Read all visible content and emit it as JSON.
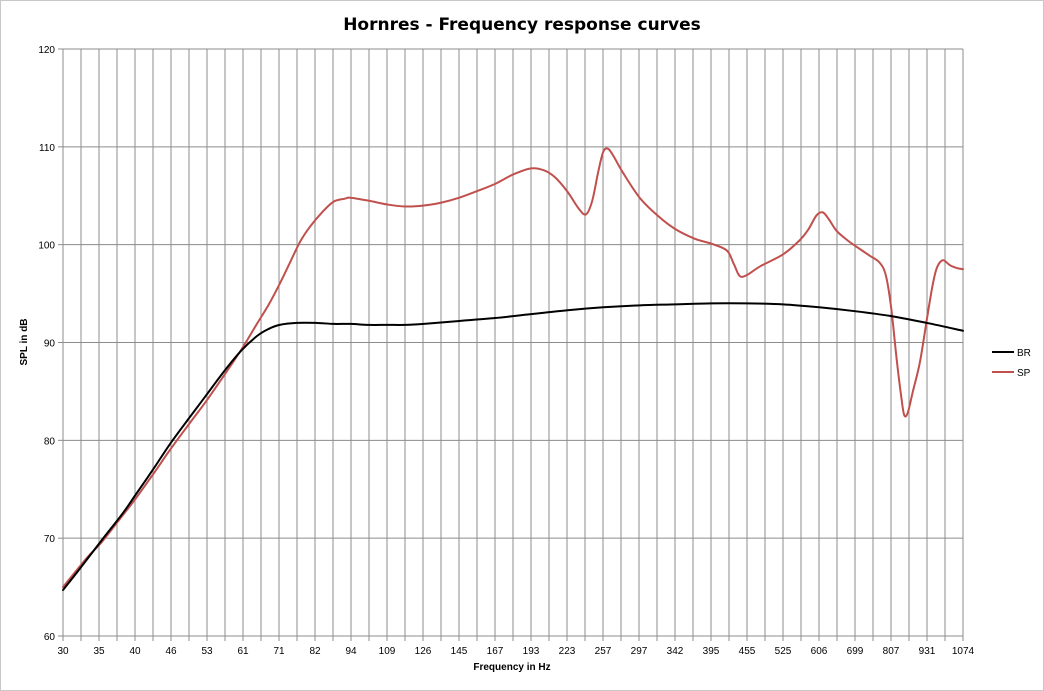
{
  "chart_data": {
    "type": "line",
    "title": "Hornres - Frequency response curves",
    "xlabel": "Frequency in Hz",
    "ylabel": "SPL in dB",
    "x_scale": "log",
    "xlim": [
      30,
      1074
    ],
    "ylim": [
      60,
      120
    ],
    "y_ticks": [
      60,
      70,
      80,
      90,
      100,
      110,
      120
    ],
    "x_tick_labels": [
      "30",
      "35",
      "40",
      "46",
      "53",
      "61",
      "71",
      "82",
      "94",
      "109",
      "126",
      "145",
      "167",
      "193",
      "223",
      "257",
      "297",
      "342",
      "395",
      "455",
      "525",
      "606",
      "699",
      "807",
      "931",
      "1074"
    ],
    "grid": true,
    "legend_position": "right",
    "series": [
      {
        "name": "BR",
        "color": "#000000",
        "points": [
          [
            30,
            64.7
          ],
          [
            32,
            66.8
          ],
          [
            35,
            69.8
          ],
          [
            38,
            72.5
          ],
          [
            40,
            74.4
          ],
          [
            43,
            77.1
          ],
          [
            46,
            79.7
          ],
          [
            50,
            82.6
          ],
          [
            53,
            84.6
          ],
          [
            57,
            87.1
          ],
          [
            61,
            89.2
          ],
          [
            65,
            90.7
          ],
          [
            68,
            91.4
          ],
          [
            71,
            91.8
          ],
          [
            76,
            92.0
          ],
          [
            82,
            92.0
          ],
          [
            88,
            91.9
          ],
          [
            94,
            91.9
          ],
          [
            101,
            91.8
          ],
          [
            109,
            91.8
          ],
          [
            117,
            91.8
          ],
          [
            126,
            91.9
          ],
          [
            145,
            92.2
          ],
          [
            167,
            92.5
          ],
          [
            193,
            92.9
          ],
          [
            223,
            93.3
          ],
          [
            257,
            93.6
          ],
          [
            297,
            93.8
          ],
          [
            342,
            93.9
          ],
          [
            395,
            94.0
          ],
          [
            455,
            94.0
          ],
          [
            525,
            93.9
          ],
          [
            606,
            93.6
          ],
          [
            699,
            93.2
          ],
          [
            807,
            92.7
          ],
          [
            931,
            92.0
          ],
          [
            1074,
            91.2
          ]
        ]
      },
      {
        "name": "SP",
        "color": "#c0504d",
        "points": [
          [
            30,
            65.0
          ],
          [
            33,
            68.0
          ],
          [
            35,
            69.6
          ],
          [
            38,
            72.3
          ],
          [
            40,
            74.0
          ],
          [
            43,
            76.6
          ],
          [
            46,
            79.1
          ],
          [
            50,
            82.0
          ],
          [
            53,
            84.0
          ],
          [
            57,
            86.7
          ],
          [
            61,
            89.3
          ],
          [
            65,
            92.0
          ],
          [
            68,
            93.9
          ],
          [
            71,
            96.0
          ],
          [
            74,
            98.2
          ],
          [
            77,
            100.3
          ],
          [
            80,
            101.8
          ],
          [
            84,
            103.3
          ],
          [
            88,
            104.4
          ],
          [
            92,
            104.7
          ],
          [
            94,
            104.8
          ],
          [
            101,
            104.5
          ],
          [
            109,
            104.1
          ],
          [
            117,
            103.9
          ],
          [
            126,
            104.0
          ],
          [
            135,
            104.3
          ],
          [
            145,
            104.8
          ],
          [
            156,
            105.5
          ],
          [
            167,
            106.2
          ],
          [
            180,
            107.2
          ],
          [
            193,
            107.8
          ],
          [
            203,
            107.6
          ],
          [
            212,
            106.9
          ],
          [
            223,
            105.4
          ],
          [
            233,
            103.7
          ],
          [
            240,
            103.1
          ],
          [
            246,
            104.5
          ],
          [
            252,
            107.5
          ],
          [
            257,
            109.5
          ],
          [
            262,
            109.8
          ],
          [
            268,
            109.0
          ],
          [
            277,
            107.5
          ],
          [
            297,
            104.8
          ],
          [
            320,
            102.9
          ],
          [
            342,
            101.6
          ],
          [
            370,
            100.6
          ],
          [
            395,
            100.1
          ],
          [
            420,
            99.4
          ],
          [
            432,
            98.0
          ],
          [
            442,
            96.8
          ],
          [
            455,
            96.9
          ],
          [
            480,
            97.8
          ],
          [
            525,
            99.0
          ],
          [
            560,
            100.4
          ],
          [
            580,
            101.5
          ],
          [
            600,
            103.0
          ],
          [
            615,
            103.3
          ],
          [
            630,
            102.6
          ],
          [
            650,
            101.4
          ],
          [
            680,
            100.4
          ],
          [
            699,
            99.9
          ],
          [
            740,
            98.9
          ],
          [
            770,
            98.2
          ],
          [
            790,
            96.9
          ],
          [
            807,
            93.6
          ],
          [
            825,
            88.3
          ],
          [
            840,
            84.5
          ],
          [
            850,
            82.6
          ],
          [
            862,
            82.8
          ],
          [
            880,
            85.0
          ],
          [
            905,
            88.0
          ],
          [
            931,
            92.5
          ],
          [
            950,
            95.6
          ],
          [
            965,
            97.4
          ],
          [
            980,
            98.2
          ],
          [
            995,
            98.4
          ],
          [
            1020,
            97.9
          ],
          [
            1050,
            97.6
          ],
          [
            1074,
            97.5
          ]
        ]
      }
    ]
  }
}
